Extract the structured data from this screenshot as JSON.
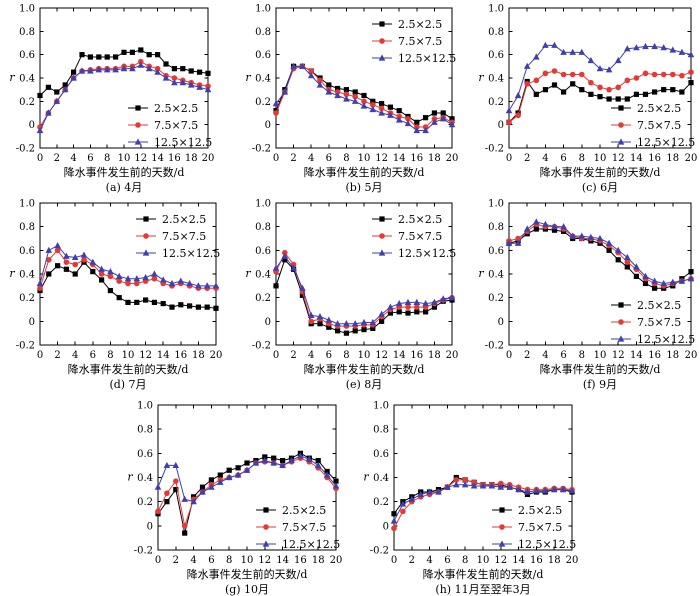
{
  "colors": {
    "series_1": "#000000",
    "series_2": "#e53935",
    "series_3": "#3f3fb0"
  },
  "legend_positions": [
    "bottom-right",
    "top-right",
    "bottom-right",
    "top-right",
    "top-right",
    "bottom-right",
    "bottom-right",
    "bottom-right"
  ],
  "chart_data": [
    {
      "type": "line",
      "subtitle": "(a) 4月",
      "xlabel": "降水事件发生前的天数/d",
      "ylabel": "r",
      "xlim": [
        0,
        20
      ],
      "ylim": [
        -0.2,
        1.0
      ],
      "xticks": [
        "0",
        "2",
        "4",
        "6",
        "8",
        "10",
        "12",
        "14",
        "16",
        "18",
        "20"
      ],
      "yticks": [
        "-0.2",
        "0",
        "0.2",
        "0.4",
        "0.6",
        "0.8",
        "1.0"
      ],
      "x": [
        0,
        1,
        2,
        3,
        4,
        5,
        6,
        7,
        8,
        9,
        10,
        11,
        12,
        13,
        14,
        15,
        16,
        17,
        18,
        19,
        20
      ],
      "series": [
        {
          "name": "2.5×2.5",
          "marker": "square",
          "values": [
            0.25,
            0.32,
            0.28,
            0.34,
            0.45,
            0.6,
            0.58,
            0.58,
            0.58,
            0.58,
            0.62,
            0.62,
            0.64,
            0.6,
            0.6,
            0.52,
            0.48,
            0.48,
            0.46,
            0.45,
            0.44
          ]
        },
        {
          "name": "7.5×7.5",
          "marker": "circle",
          "values": [
            -0.02,
            0.1,
            0.2,
            0.3,
            0.4,
            0.46,
            0.47,
            0.48,
            0.48,
            0.48,
            0.5,
            0.5,
            0.54,
            0.5,
            0.48,
            0.42,
            0.4,
            0.38,
            0.36,
            0.34,
            0.33
          ]
        },
        {
          "name": "12.5×12.5",
          "marker": "triangle",
          "values": [
            -0.05,
            0.1,
            0.2,
            0.3,
            0.4,
            0.46,
            0.46,
            0.47,
            0.47,
            0.47,
            0.48,
            0.48,
            0.51,
            0.48,
            0.45,
            0.4,
            0.36,
            0.36,
            0.34,
            0.32,
            0.3
          ]
        }
      ]
    },
    {
      "type": "line",
      "subtitle": "(b) 5月",
      "xlabel": "降水事件发生前的天数/d",
      "ylabel": "r",
      "xlim": [
        0,
        20
      ],
      "ylim": [
        -0.2,
        1.0
      ],
      "xticks": [
        "0",
        "2",
        "4",
        "6",
        "8",
        "10",
        "12",
        "14",
        "16",
        "18",
        "20"
      ],
      "yticks": [
        "-0.2",
        "0",
        "0.2",
        "0.4",
        "0.6",
        "0.8",
        "1.0"
      ],
      "x": [
        0,
        1,
        2,
        3,
        4,
        5,
        6,
        7,
        8,
        9,
        10,
        11,
        12,
        13,
        14,
        15,
        16,
        17,
        18,
        19,
        20
      ],
      "series": [
        {
          "name": "2.5×2.5",
          "marker": "square",
          "values": [
            0.12,
            0.3,
            0.5,
            0.5,
            0.46,
            0.4,
            0.34,
            0.31,
            0.3,
            0.28,
            0.25,
            0.2,
            0.18,
            0.15,
            0.12,
            0.07,
            0.02,
            0.06,
            0.1,
            0.1,
            0.05
          ]
        },
        {
          "name": "7.5×7.5",
          "marker": "circle",
          "values": [
            0.1,
            0.28,
            0.48,
            0.5,
            0.46,
            0.38,
            0.3,
            0.28,
            0.26,
            0.24,
            0.2,
            0.17,
            0.14,
            0.1,
            0.07,
            0.05,
            -0.02,
            -0.02,
            0.05,
            0.06,
            0.02
          ]
        },
        {
          "name": "12.5×12.5",
          "marker": "triangle",
          "values": [
            0.18,
            0.28,
            0.5,
            0.5,
            0.42,
            0.34,
            0.28,
            0.25,
            0.22,
            0.2,
            0.16,
            0.13,
            0.1,
            0.08,
            0.04,
            0.01,
            -0.05,
            -0.05,
            0.02,
            0.05,
            0.0
          ]
        }
      ]
    },
    {
      "type": "line",
      "subtitle": "(c) 6月",
      "xlabel": "降水事件发生前的天数/d",
      "ylabel": "r",
      "xlim": [
        0,
        20
      ],
      "ylim": [
        -0.2,
        1.0
      ],
      "xticks": [
        "0",
        "2",
        "4",
        "6",
        "8",
        "10",
        "12",
        "14",
        "16",
        "18",
        "20"
      ],
      "yticks": [
        "-0.2",
        "0",
        "0.2",
        "0.4",
        "0.6",
        "0.8",
        "1.0"
      ],
      "x": [
        0,
        1,
        2,
        3,
        4,
        5,
        6,
        7,
        8,
        9,
        10,
        11,
        12,
        13,
        14,
        15,
        16,
        17,
        18,
        19,
        20
      ],
      "series": [
        {
          "name": "2.5×2.5",
          "marker": "square",
          "values": [
            0.02,
            0.1,
            0.37,
            0.26,
            0.3,
            0.34,
            0.28,
            0.35,
            0.3,
            0.26,
            0.24,
            0.22,
            0.22,
            0.22,
            0.26,
            0.26,
            0.28,
            0.3,
            0.3,
            0.28,
            0.36
          ]
        },
        {
          "name": "7.5×7.5",
          "marker": "circle",
          "values": [
            0.02,
            0.08,
            0.35,
            0.38,
            0.44,
            0.46,
            0.43,
            0.43,
            0.43,
            0.36,
            0.32,
            0.3,
            0.32,
            0.38,
            0.4,
            0.44,
            0.43,
            0.43,
            0.43,
            0.42,
            0.45
          ]
        },
        {
          "name": "12.5×12.5",
          "marker": "triangle",
          "values": [
            0.12,
            0.25,
            0.5,
            0.58,
            0.68,
            0.68,
            0.62,
            0.62,
            0.62,
            0.55,
            0.48,
            0.47,
            0.55,
            0.65,
            0.66,
            0.67,
            0.67,
            0.66,
            0.64,
            0.62,
            0.6
          ]
        }
      ]
    },
    {
      "type": "line",
      "subtitle": "(d) 7月",
      "xlabel": "降水事件发生前的天数/d",
      "ylabel": "r",
      "xlim": [
        0,
        20
      ],
      "ylim": [
        -0.2,
        1.0
      ],
      "xticks": [
        "0",
        "2",
        "4",
        "6",
        "8",
        "10",
        "12",
        "14",
        "16",
        "18",
        "20"
      ],
      "yticks": [
        "-0.2",
        "0",
        "0.2",
        "0.4",
        "0.6",
        "0.8",
        "1.0"
      ],
      "x": [
        0,
        1,
        2,
        3,
        4,
        5,
        6,
        7,
        8,
        9,
        10,
        11,
        12,
        13,
        14,
        15,
        16,
        17,
        18,
        19,
        20
      ],
      "series": [
        {
          "name": "2.5×2.5",
          "marker": "square",
          "values": [
            0.26,
            0.4,
            0.47,
            0.44,
            0.4,
            0.5,
            0.42,
            0.35,
            0.26,
            0.2,
            0.16,
            0.16,
            0.18,
            0.16,
            0.15,
            0.12,
            0.14,
            0.13,
            0.12,
            0.12,
            0.11
          ]
        },
        {
          "name": "7.5×7.5",
          "marker": "circle",
          "values": [
            0.28,
            0.52,
            0.6,
            0.5,
            0.48,
            0.52,
            0.48,
            0.4,
            0.38,
            0.34,
            0.32,
            0.32,
            0.34,
            0.36,
            0.32,
            0.3,
            0.32,
            0.3,
            0.28,
            0.28,
            0.28
          ]
        },
        {
          "name": "12.5×12.5",
          "marker": "triangle",
          "values": [
            0.32,
            0.6,
            0.64,
            0.55,
            0.54,
            0.56,
            0.5,
            0.44,
            0.42,
            0.38,
            0.36,
            0.36,
            0.37,
            0.4,
            0.35,
            0.32,
            0.34,
            0.32,
            0.3,
            0.3,
            0.3
          ]
        }
      ]
    },
    {
      "type": "line",
      "subtitle": "(e) 8月",
      "xlabel": "降水事件发生前的天数/d",
      "ylabel": "r",
      "xlim": [
        0,
        20
      ],
      "ylim": [
        -0.2,
        1.0
      ],
      "xticks": [
        "0",
        "2",
        "4",
        "6",
        "8",
        "10",
        "12",
        "14",
        "16",
        "18",
        "20"
      ],
      "yticks": [
        "-0.2",
        "0",
        "0.2",
        "0.4",
        "0.6",
        "0.8",
        "1.0"
      ],
      "x": [
        0,
        1,
        2,
        3,
        4,
        5,
        6,
        7,
        8,
        9,
        10,
        11,
        12,
        13,
        14,
        15,
        16,
        17,
        18,
        19,
        20
      ],
      "series": [
        {
          "name": "2.5×2.5",
          "marker": "square",
          "values": [
            0.3,
            0.52,
            0.44,
            0.22,
            -0.02,
            -0.02,
            -0.05,
            -0.08,
            -0.1,
            -0.08,
            -0.07,
            -0.06,
            0.0,
            0.07,
            0.08,
            0.07,
            0.08,
            0.08,
            0.12,
            0.17,
            0.18
          ]
        },
        {
          "name": "7.5×7.5",
          "marker": "circle",
          "values": [
            0.42,
            0.58,
            0.48,
            0.25,
            0.0,
            0.02,
            -0.02,
            -0.04,
            -0.04,
            -0.04,
            -0.03,
            -0.03,
            0.04,
            0.1,
            0.12,
            0.12,
            0.12,
            0.12,
            0.15,
            0.18,
            0.2
          ]
        },
        {
          "name": "12.5×12.5",
          "marker": "triangle",
          "values": [
            0.45,
            0.55,
            0.45,
            0.28,
            0.05,
            0.04,
            0.01,
            -0.02,
            -0.02,
            -0.02,
            -0.01,
            -0.01,
            0.06,
            0.12,
            0.15,
            0.16,
            0.16,
            0.15,
            0.16,
            0.19,
            0.2
          ]
        }
      ]
    },
    {
      "type": "line",
      "subtitle": "(f) 9月",
      "xlabel": "降水事件发生前的天数/d",
      "ylabel": "r",
      "xlim": [
        0,
        20
      ],
      "ylim": [
        -0.2,
        1.0
      ],
      "xticks": [
        "0",
        "2",
        "4",
        "6",
        "8",
        "10",
        "12",
        "14",
        "16",
        "18",
        "20"
      ],
      "yticks": [
        "-0.2",
        "0",
        "0.2",
        "0.4",
        "0.6",
        "0.8",
        "1.0"
      ],
      "x": [
        0,
        1,
        2,
        3,
        4,
        5,
        6,
        7,
        8,
        9,
        10,
        11,
        12,
        13,
        14,
        15,
        16,
        17,
        18,
        19,
        20
      ],
      "series": [
        {
          "name": "2.5×2.5",
          "marker": "square",
          "values": [
            0.66,
            0.68,
            0.74,
            0.78,
            0.78,
            0.77,
            0.76,
            0.7,
            0.7,
            0.68,
            0.66,
            0.6,
            0.52,
            0.46,
            0.38,
            0.32,
            0.28,
            0.28,
            0.3,
            0.36,
            0.42
          ]
        },
        {
          "name": "7.5×7.5",
          "marker": "circle",
          "values": [
            0.68,
            0.7,
            0.76,
            0.82,
            0.8,
            0.8,
            0.78,
            0.72,
            0.7,
            0.7,
            0.68,
            0.64,
            0.58,
            0.5,
            0.44,
            0.36,
            0.32,
            0.3,
            0.32,
            0.34,
            0.36
          ]
        },
        {
          "name": "12.5×12.5",
          "marker": "triangle",
          "values": [
            0.66,
            0.66,
            0.78,
            0.84,
            0.82,
            0.8,
            0.8,
            0.72,
            0.72,
            0.71,
            0.7,
            0.66,
            0.6,
            0.54,
            0.46,
            0.38,
            0.34,
            0.32,
            0.33,
            0.34,
            0.36
          ]
        }
      ]
    },
    {
      "type": "line",
      "subtitle": "(g) 10月",
      "xlabel": "降水事件发生前的天数/d",
      "ylabel": "r",
      "xlim": [
        0,
        20
      ],
      "ylim": [
        -0.2,
        1.0
      ],
      "xticks": [
        "0",
        "2",
        "4",
        "6",
        "8",
        "10",
        "12",
        "14",
        "16",
        "18",
        "20"
      ],
      "yticks": [
        "-0.2",
        "0",
        "0.2",
        "0.4",
        "0.6",
        "0.8",
        "1.0"
      ],
      "x": [
        0,
        1,
        2,
        3,
        4,
        5,
        6,
        7,
        8,
        9,
        10,
        11,
        12,
        13,
        14,
        15,
        16,
        17,
        18,
        19,
        20
      ],
      "series": [
        {
          "name": "2.5×2.5",
          "marker": "square",
          "values": [
            0.1,
            0.2,
            0.3,
            -0.06,
            0.24,
            0.32,
            0.38,
            0.42,
            0.46,
            0.48,
            0.52,
            0.54,
            0.57,
            0.56,
            0.54,
            0.56,
            0.6,
            0.56,
            0.54,
            0.45,
            0.37
          ]
        },
        {
          "name": "7.5×7.5",
          "marker": "circle",
          "values": [
            0.12,
            0.27,
            0.37,
            0.0,
            0.22,
            0.28,
            0.34,
            0.38,
            0.4,
            0.42,
            0.46,
            0.52,
            0.53,
            0.52,
            0.5,
            0.53,
            0.56,
            0.53,
            0.48,
            0.4,
            0.31
          ]
        },
        {
          "name": "12.5×12.5",
          "marker": "triangle",
          "values": [
            0.32,
            0.5,
            0.5,
            0.22,
            0.2,
            0.28,
            0.32,
            0.36,
            0.4,
            0.42,
            0.46,
            0.52,
            0.54,
            0.52,
            0.5,
            0.54,
            0.58,
            0.55,
            0.5,
            0.42,
            0.33
          ]
        }
      ]
    },
    {
      "type": "line",
      "subtitle": "(h) 11月至翌年3月",
      "xlabel": "降水事件发生前的天数/d",
      "ylabel": "r",
      "xlim": [
        0,
        20
      ],
      "ylim": [
        -0.2,
        1.0
      ],
      "xticks": [
        "0",
        "2",
        "4",
        "6",
        "8",
        "10",
        "12",
        "14",
        "16",
        "18",
        "20"
      ],
      "yticks": [
        "-0.2",
        "0",
        "0.2",
        "0.4",
        "0.6",
        "0.8",
        "1.0"
      ],
      "x": [
        0,
        1,
        2,
        3,
        4,
        5,
        6,
        7,
        8,
        9,
        10,
        11,
        12,
        13,
        14,
        15,
        16,
        17,
        18,
        19,
        20
      ],
      "series": [
        {
          "name": "2.5×2.5",
          "marker": "square",
          "values": [
            0.1,
            0.2,
            0.24,
            0.28,
            0.28,
            0.3,
            0.32,
            0.4,
            0.38,
            0.36,
            0.34,
            0.34,
            0.34,
            0.32,
            0.3,
            0.26,
            0.28,
            0.28,
            0.3,
            0.3,
            0.28
          ]
        },
        {
          "name": "7.5×7.5",
          "marker": "circle",
          "values": [
            -0.02,
            0.12,
            0.2,
            0.24,
            0.26,
            0.28,
            0.32,
            0.38,
            0.38,
            0.36,
            0.34,
            0.34,
            0.35,
            0.34,
            0.32,
            0.3,
            0.3,
            0.3,
            0.31,
            0.31,
            0.3
          ]
        },
        {
          "name": "12.5×12.5",
          "marker": "triangle",
          "values": [
            0.04,
            0.18,
            0.22,
            0.26,
            0.28,
            0.28,
            0.32,
            0.34,
            0.34,
            0.33,
            0.33,
            0.33,
            0.32,
            0.32,
            0.3,
            0.28,
            0.29,
            0.29,
            0.3,
            0.3,
            0.29
          ]
        }
      ]
    }
  ]
}
